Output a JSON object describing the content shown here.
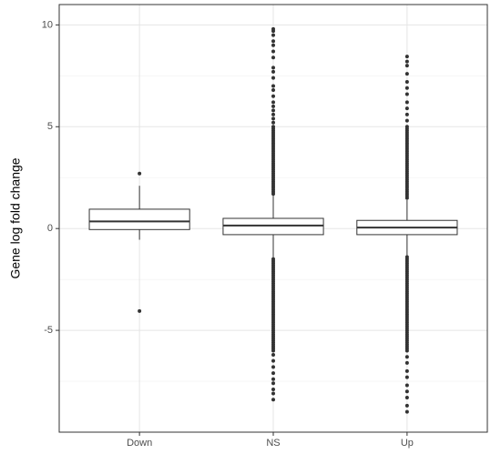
{
  "chart_data": {
    "type": "boxplot",
    "ylabel": "Gene log fold change",
    "categories": [
      "Down",
      "NS",
      "Up"
    ],
    "ylim": [
      -10,
      11
    ],
    "yticks": [
      -5,
      0,
      5,
      10
    ],
    "yminor": [
      -7.5,
      -2.5,
      2.5,
      7.5
    ],
    "grid": true,
    "color": "#333333",
    "boxes": [
      {
        "whisker_low": -0.55,
        "q1": -0.05,
        "median": 0.35,
        "q3": 0.95,
        "whisker_high": 2.1,
        "outliers": [
          2.7,
          -4.05
        ]
      },
      {
        "whisker_low": -1.45,
        "q1": -0.3,
        "median": 0.15,
        "q3": 0.5,
        "whisker_high": 1.65,
        "outliers": [
          1.7,
          1.8,
          1.9,
          2.0,
          2.1,
          2.2,
          2.3,
          2.4,
          2.5,
          2.6,
          2.7,
          2.8,
          2.9,
          3.0,
          3.1,
          3.2,
          3.3,
          3.4,
          3.5,
          3.6,
          3.7,
          3.8,
          3.9,
          4.0,
          4.1,
          4.2,
          4.3,
          4.4,
          4.5,
          4.6,
          4.7,
          4.8,
          4.9,
          5.0,
          5.2,
          5.4,
          5.6,
          5.8,
          6.0,
          6.2,
          6.5,
          6.8,
          7.0,
          7.4,
          7.7,
          7.9,
          8.4,
          8.7,
          9.0,
          9.2,
          9.5,
          9.7,
          9.8,
          -1.5,
          -1.6,
          -1.7,
          -1.8,
          -1.9,
          -2.0,
          -2.1,
          -2.2,
          -2.3,
          -2.4,
          -2.5,
          -2.6,
          -2.7,
          -2.8,
          -2.9,
          -3.0,
          -3.1,
          -3.2,
          -3.3,
          -3.4,
          -3.5,
          -3.6,
          -3.7,
          -3.8,
          -3.9,
          -4.0,
          -4.1,
          -4.2,
          -4.3,
          -4.4,
          -4.5,
          -4.6,
          -4.7,
          -4.8,
          -4.9,
          -5.0,
          -5.1,
          -5.2,
          -5.3,
          -5.4,
          -5.5,
          -5.6,
          -5.7,
          -5.8,
          -5.9,
          -6.0,
          -6.2,
          -6.5,
          -6.8,
          -7.1,
          -7.4,
          -7.6,
          -7.9,
          -8.1,
          -8.4
        ]
      },
      {
        "whisker_low": -1.35,
        "q1": -0.3,
        "median": 0.05,
        "q3": 0.4,
        "whisker_high": 1.4,
        "outliers": [
          1.5,
          1.6,
          1.7,
          1.8,
          1.9,
          2.0,
          2.1,
          2.2,
          2.3,
          2.4,
          2.5,
          2.6,
          2.7,
          2.8,
          2.9,
          3.0,
          3.1,
          3.2,
          3.3,
          3.4,
          3.5,
          3.6,
          3.7,
          3.8,
          3.9,
          4.0,
          4.1,
          4.2,
          4.3,
          4.4,
          4.5,
          4.6,
          4.7,
          4.8,
          4.9,
          5.0,
          5.3,
          5.6,
          5.9,
          6.2,
          6.6,
          6.9,
          7.2,
          7.6,
          8.0,
          8.2,
          8.45,
          -1.4,
          -1.5,
          -1.6,
          -1.7,
          -1.8,
          -1.9,
          -2.0,
          -2.1,
          -2.2,
          -2.3,
          -2.4,
          -2.5,
          -2.6,
          -2.7,
          -2.8,
          -2.9,
          -3.0,
          -3.1,
          -3.2,
          -3.3,
          -3.4,
          -3.5,
          -3.6,
          -3.7,
          -3.8,
          -3.9,
          -4.0,
          -4.1,
          -4.2,
          -4.3,
          -4.4,
          -4.5,
          -4.6,
          -4.7,
          -4.8,
          -4.9,
          -5.0,
          -5.1,
          -5.2,
          -5.3,
          -5.4,
          -5.5,
          -5.6,
          -5.7,
          -5.8,
          -5.9,
          -6.0,
          -6.3,
          -6.6,
          -7.0,
          -7.3,
          -7.7,
          -8.0,
          -8.3,
          -8.7,
          -9.0
        ]
      }
    ]
  }
}
